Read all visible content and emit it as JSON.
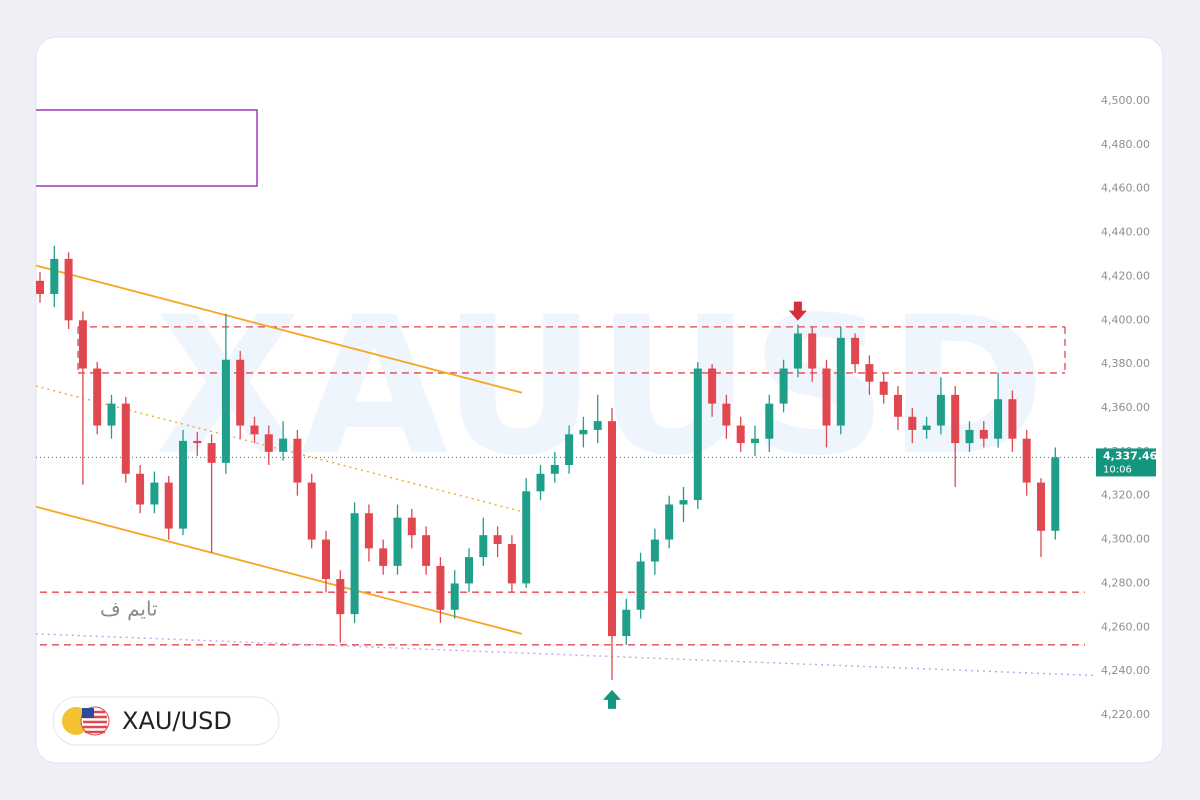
{
  "chart_data": {
    "type": "candlestick",
    "watermark": "XAUUSD",
    "symbol": "XAU/USD",
    "side_text": "تايم ف",
    "ylim": [
      4220,
      4500
    ],
    "yticks": [
      {
        "value": 4220,
        "label": "4,220.00"
      },
      {
        "value": 4240,
        "label": "4,240.00"
      },
      {
        "value": 4260,
        "label": "4,260.00"
      },
      {
        "value": 4280,
        "label": "4,280.00"
      },
      {
        "value": 4300,
        "label": "4,300.00"
      },
      {
        "value": 4320,
        "label": "4,320.00"
      },
      {
        "value": 4340,
        "label": "4,340.00"
      },
      {
        "value": 4360,
        "label": "4,360.00"
      },
      {
        "value": 4380,
        "label": "4,380.00"
      },
      {
        "value": 4400,
        "label": "4,400.00"
      },
      {
        "value": 4420,
        "label": "4,420.00"
      },
      {
        "value": 4440,
        "label": "4,440.00"
      },
      {
        "value": 4460,
        "label": "4,460.00"
      },
      {
        "value": 4480,
        "label": "4,480.00"
      },
      {
        "value": 4500,
        "label": "4,500.00"
      }
    ],
    "up_color": "#1f9e89",
    "down_color": "#e0474f",
    "open": [
      4418,
      4412,
      4428,
      4400,
      4378,
      4352,
      4362,
      4330,
      4316,
      4326,
      4305,
      4345,
      4344,
      4335,
      4382,
      4352,
      4348,
      4340,
      4346,
      4326,
      4300,
      4282,
      4266,
      4312,
      4296,
      4288,
      4310,
      4302,
      4288,
      4268,
      4280,
      4292,
      4302,
      4298,
      4280,
      4322,
      4330,
      4334,
      4348,
      4350,
      4354,
      4256,
      4268,
      4290,
      4300,
      4316,
      4318,
      4378,
      4362,
      4352,
      4344,
      4346,
      4362,
      4378,
      4394,
      4378,
      4352,
      4392,
      4380,
      4372,
      4366,
      4356,
      4350,
      4352,
      4366,
      4344,
      4350,
      4346,
      4364,
      4346,
      4326,
      4304
    ],
    "high": [
      4422,
      4434,
      4431,
      4404,
      4381,
      4366,
      4365,
      4334,
      4331,
      4329,
      4350,
      4349,
      4348,
      4403,
      4386,
      4356,
      4352,
      4354,
      4350,
      4330,
      4304,
      4286,
      4317,
      4316,
      4300,
      4316,
      4314,
      4306,
      4292,
      4286,
      4296,
      4310,
      4306,
      4302,
      4328,
      4334,
      4340,
      4352,
      4356,
      4366,
      4360,
      4273,
      4294,
      4305,
      4320,
      4324,
      4381,
      4380,
      4366,
      4356,
      4352,
      4366,
      4382,
      4398,
      4397,
      4382,
      4397,
      4394,
      4384,
      4376,
      4370,
      4360,
      4356,
      4374,
      4370,
      4354,
      4354,
      4376,
      4368,
      4350,
      4328,
      4342
    ],
    "low": [
      4408,
      4406,
      4396,
      4325,
      4348,
      4346,
      4326,
      4312,
      4312,
      4300,
      4302,
      4338,
      4294,
      4330,
      4346,
      4344,
      4334,
      4336,
      4320,
      4296,
      4276,
      4253,
      4262,
      4290,
      4284,
      4284,
      4296,
      4284,
      4262,
      4264,
      4276,
      4288,
      4292,
      4276,
      4278,
      4318,
      4326,
      4330,
      4342,
      4344,
      4236,
      4252,
      4264,
      4284,
      4296,
      4308,
      4314,
      4356,
      4346,
      4340,
      4338,
      4340,
      4358,
      4374,
      4372,
      4342,
      4348,
      4376,
      4366,
      4362,
      4350,
      4344,
      4346,
      4348,
      4324,
      4340,
      4342,
      4342,
      4340,
      4320,
      4292,
      4300
    ],
    "close": [
      4412,
      4428,
      4400,
      4378,
      4352,
      4362,
      4330,
      4316,
      4326,
      4305,
      4345,
      4344,
      4335,
      4382,
      4352,
      4348,
      4340,
      4346,
      4326,
      4300,
      4282,
      4266,
      4312,
      4296,
      4288,
      4310,
      4302,
      4288,
      4268,
      4280,
      4292,
      4302,
      4298,
      4280,
      4322,
      4330,
      4334,
      4348,
      4350,
      4354,
      4256,
      4268,
      4290,
      4300,
      4316,
      4318,
      4378,
      4362,
      4352,
      4344,
      4346,
      4362,
      4378,
      4394,
      4378,
      4352,
      4392,
      4380,
      4372,
      4366,
      4356,
      4350,
      4352,
      4366,
      4344,
      4350,
      4346,
      4364,
      4346,
      4326,
      4304,
      4337.46
    ],
    "last_price": {
      "value": 4337.46,
      "label": "4,337.46"
    },
    "countdown": "10:06",
    "last_price_color": "#14957e",
    "levels": [
      4397,
      4376,
      4276,
      4252
    ],
    "level_color": "#e0474f",
    "trendlines": [
      {
        "from": [
          -0.3,
          4425
        ],
        "to": [
          33.7,
          4367
        ],
        "color": "#f5a623",
        "style": "solid"
      },
      {
        "from": [
          -0.3,
          4315
        ],
        "to": [
          33.7,
          4257
        ],
        "color": "#f5a623",
        "style": "solid"
      },
      {
        "from": [
          -0.3,
          4370
        ],
        "to": [
          33.6,
          4313
        ],
        "color": "#f5a623",
        "style": "dotted"
      },
      {
        "from": [
          -0.3,
          4257
        ],
        "to": [
          73.8,
          4238
        ],
        "color": "#b7a6e8",
        "style": "dotted"
      }
    ],
    "markers": [
      {
        "index": 53,
        "direction": "down",
        "color": "#d32f3a"
      },
      {
        "index": 40,
        "direction": "up",
        "color": "#14957e"
      }
    ]
  }
}
